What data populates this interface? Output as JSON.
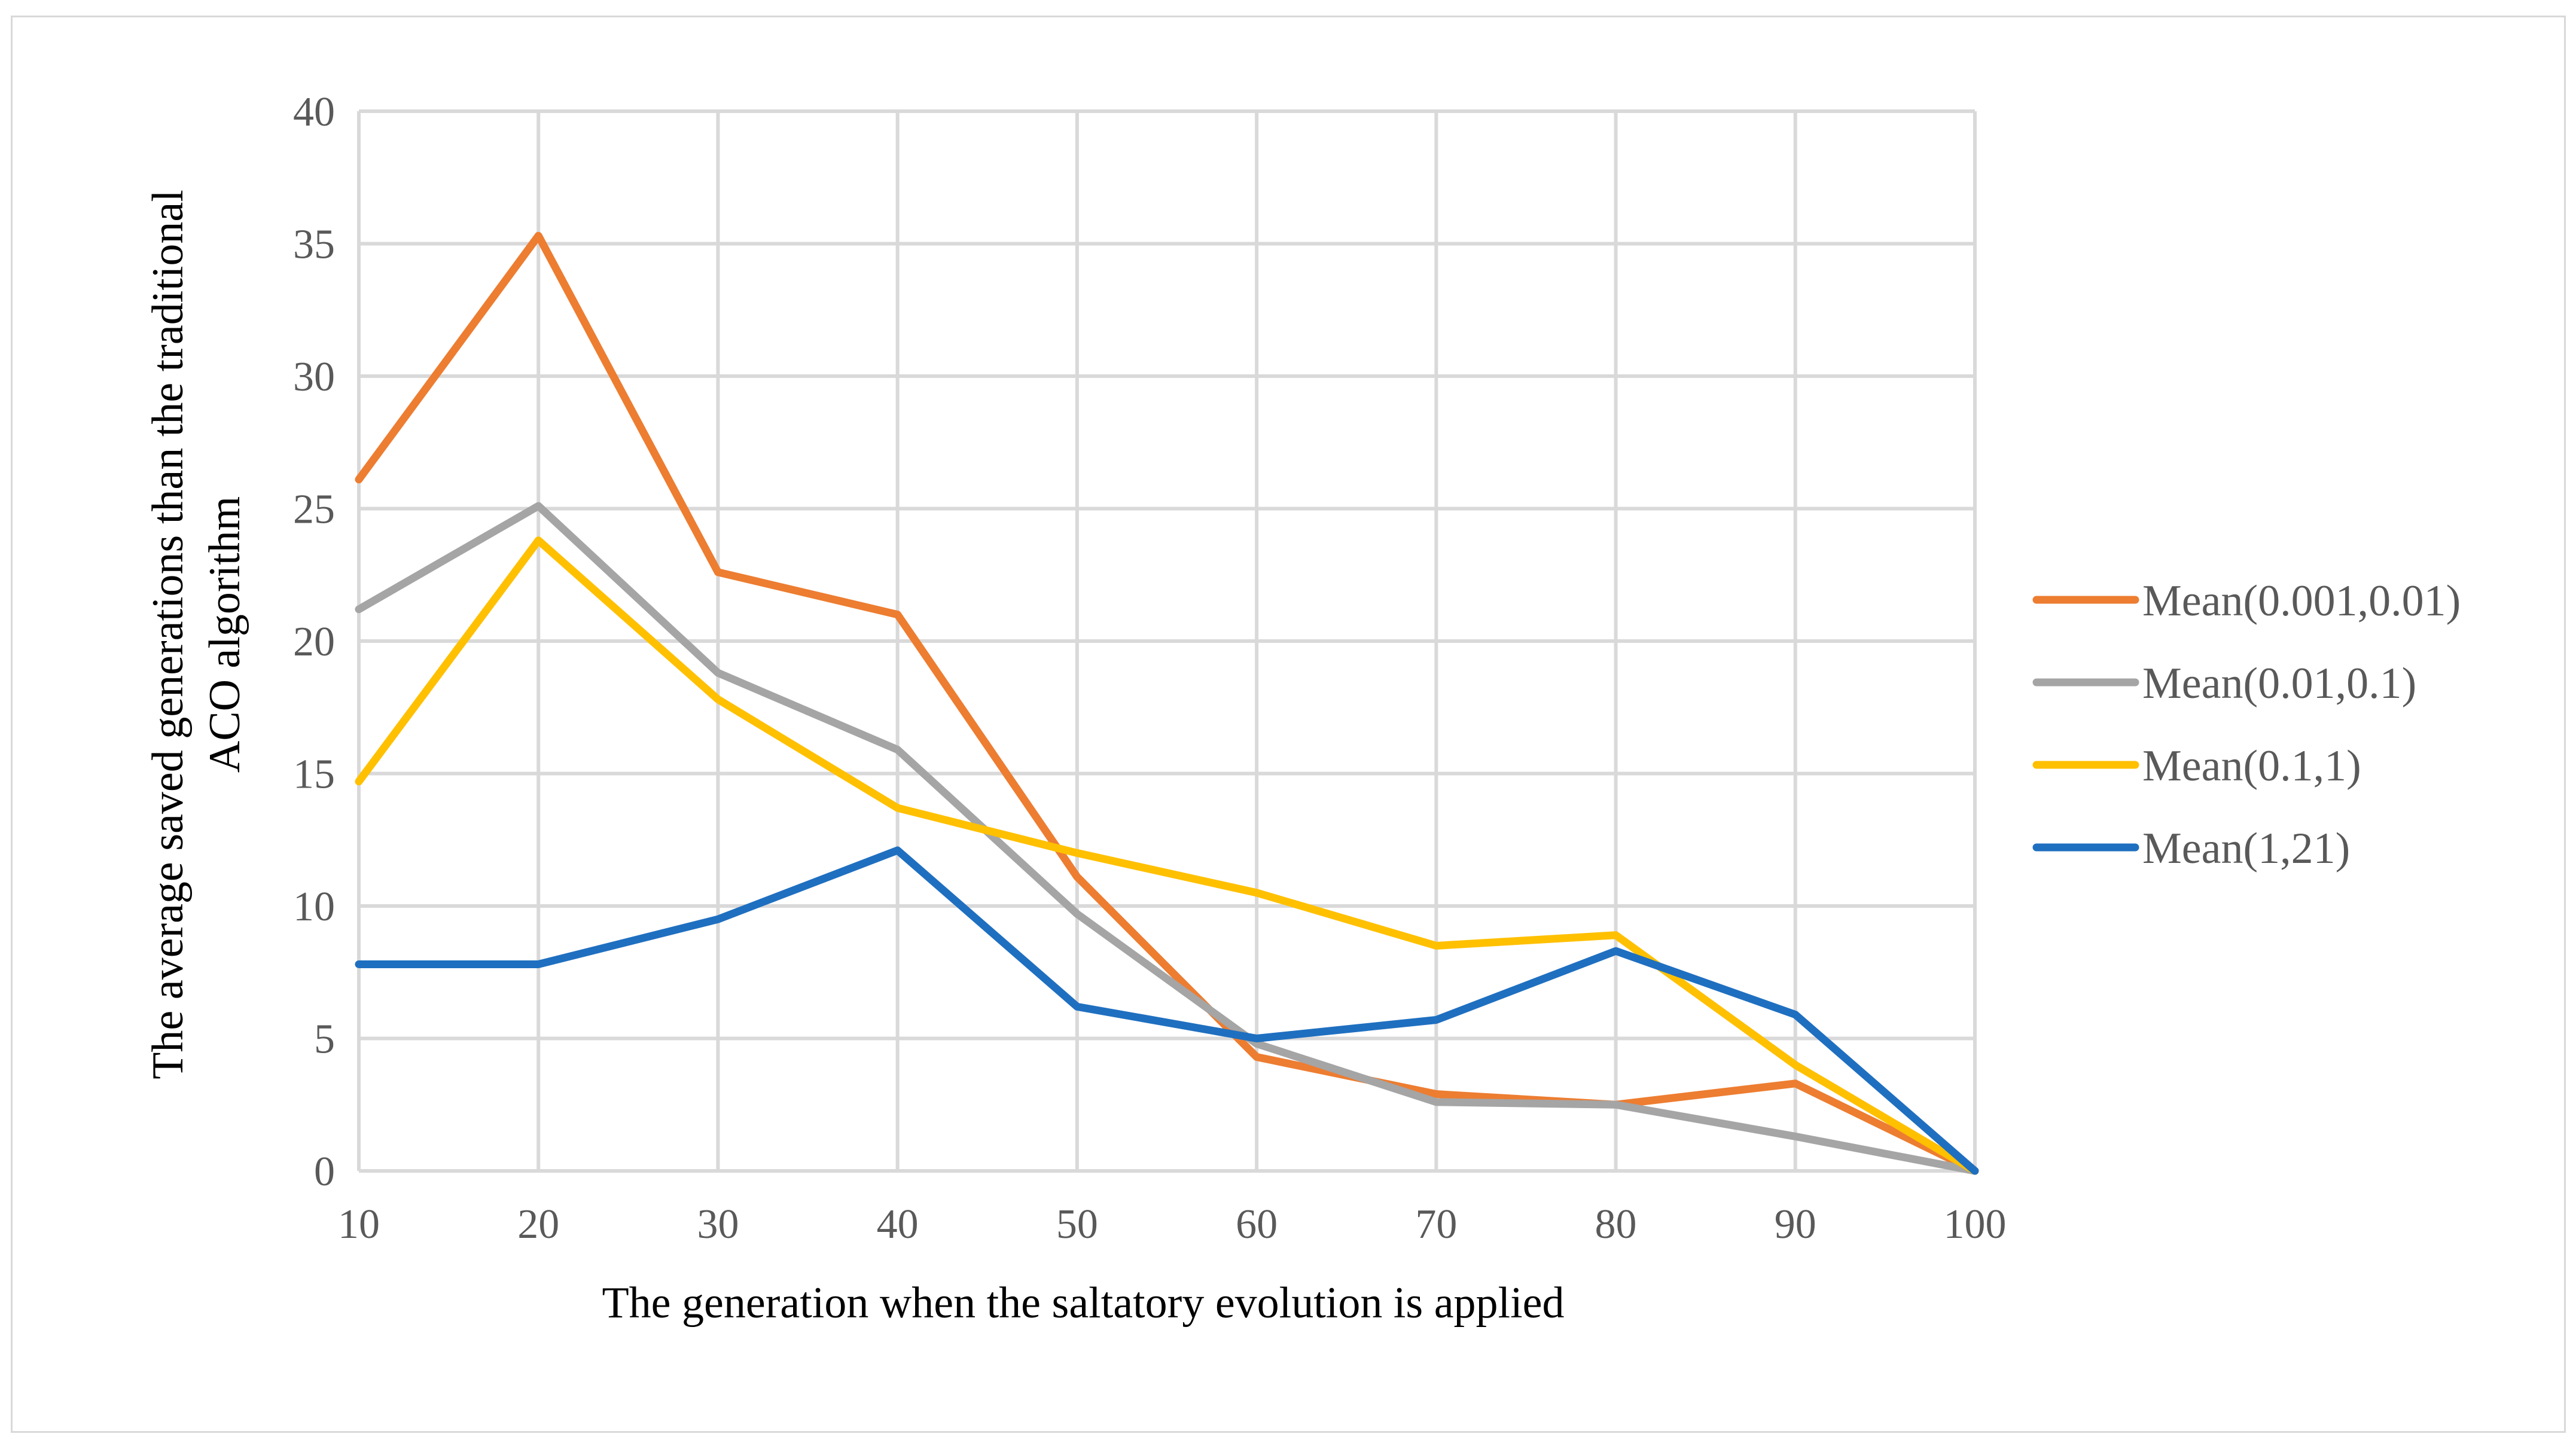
{
  "chart_data": {
    "type": "line",
    "title": "",
    "xlabel": "The generation when the saltatory evolution  is applied",
    "ylabel_lines": [
      "The average saved generations than the traditional",
      "ACO algorithm"
    ],
    "x": [
      10,
      20,
      30,
      40,
      50,
      60,
      70,
      80,
      90,
      100
    ],
    "x_tick_labels": [
      "10",
      "20",
      "30",
      "40",
      "50",
      "60",
      "70",
      "80",
      "90",
      "100"
    ],
    "ylim": [
      0,
      40
    ],
    "y_ticks": [
      0,
      5,
      10,
      15,
      20,
      25,
      30,
      35,
      40
    ],
    "y_tick_labels": [
      "0",
      "5",
      "10",
      "15",
      "20",
      "25",
      "30",
      "35",
      "40"
    ],
    "grid": true,
    "legend_position": "right",
    "series": [
      {
        "name": "Mean(0.001,0.01)",
        "color": "#ed7d31",
        "values": [
          26.1,
          35.3,
          22.6,
          21.0,
          11.1,
          4.3,
          2.9,
          2.5,
          3.3,
          0.0
        ]
      },
      {
        "name": "Mean(0.01,0.1)",
        "color": "#a5a5a5",
        "values": [
          21.2,
          25.1,
          18.8,
          15.9,
          9.7,
          4.8,
          2.6,
          2.5,
          1.3,
          0.0
        ]
      },
      {
        "name": "Mean(0.1,1)",
        "color": "#ffc000",
        "values": [
          14.7,
          23.8,
          17.8,
          13.7,
          12.0,
          10.5,
          8.5,
          8.9,
          4.0,
          0.0
        ]
      },
      {
        "name": "Mean(1,21)",
        "color": "#1f6fc0",
        "values": [
          7.8,
          7.8,
          9.5,
          12.1,
          6.2,
          5.0,
          5.7,
          8.3,
          5.9,
          0.0
        ]
      }
    ]
  }
}
